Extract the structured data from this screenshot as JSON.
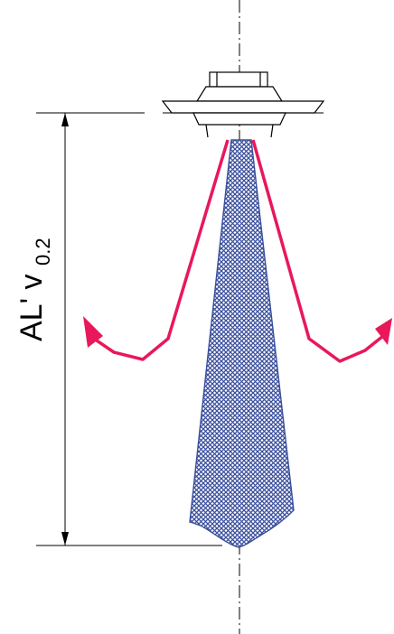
{
  "dimension_label": {
    "main": "AL' v",
    "subscript": "0.2"
  },
  "colors": {
    "air_flow_arrows": "#e8185a",
    "jet_fill": "#3a4f9c",
    "line": "#000000",
    "background": "#ffffff"
  },
  "icons": {
    "diffuser": "ceiling-diffuser-icon",
    "arrows": "curved-arrow-icon"
  }
}
